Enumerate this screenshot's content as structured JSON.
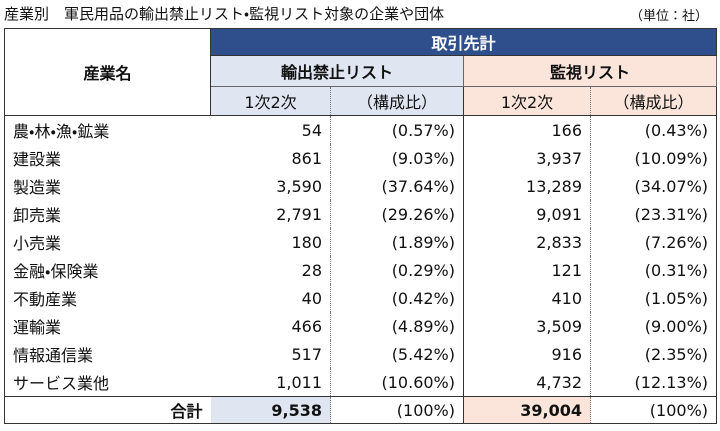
{
  "header": {
    "title": "産業別　軍民用品の輸出禁止リスト・監視リスト対象の企業や団体",
    "unit": "（単位：社）"
  },
  "table": {
    "name_header": "産業名",
    "group_header": "取引先計",
    "lists": [
      "輸出禁止リスト",
      "監視リスト"
    ],
    "sub_headers": [
      "1次2次",
      "（構成比）",
      "1次2次",
      "（構成比）"
    ],
    "rows": [
      [
        "農・林・漁・鉱業",
        "54",
        "(0.57%)",
        "166",
        "(0.43%)"
      ],
      [
        "建設業",
        "861",
        "(9.03%)",
        "3,937",
        "(10.09%)"
      ],
      [
        "製造業",
        "3,590",
        "(37.64%)",
        "13,289",
        "(34.07%)"
      ],
      [
        "卸売業",
        "2,791",
        "(29.26%)",
        "9,091",
        "(23.31%)"
      ],
      [
        "小売業",
        "180",
        "(1.89%)",
        "2,833",
        "(7.26%)"
      ],
      [
        "金融・保険業",
        "28",
        "(0.29%)",
        "121",
        "(0.31%)"
      ],
      [
        "不動産業",
        "40",
        "(0.42%)",
        "410",
        "(1.05%)"
      ],
      [
        "運輸業",
        "466",
        "(4.89%)",
        "3,509",
        "(9.00%)"
      ],
      [
        "情報通信業",
        "517",
        "(5.42%)",
        "916",
        "(2.35%)"
      ],
      [
        "サービス業他",
        "1,011",
        "(10.60%)",
        "4,732",
        "(12.13%)"
      ]
    ],
    "total": [
      "合計",
      "9,538",
      "(100%)",
      "39,004",
      "(100%)"
    ]
  }
}
